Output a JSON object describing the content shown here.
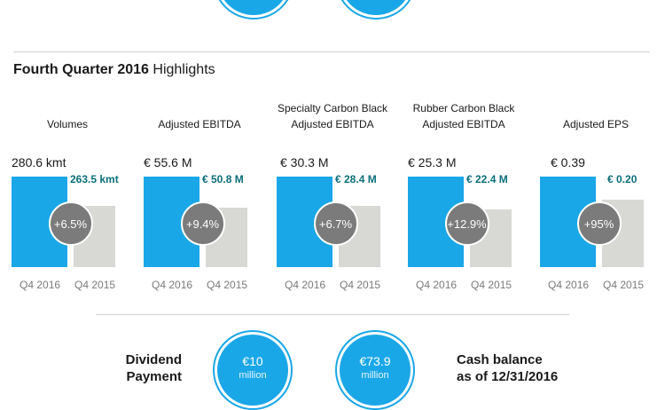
{
  "header": {
    "title_bold": "Fourth Quarter 2016",
    "title_regular": "Highlights"
  },
  "colors": {
    "current": "#1aa7e8",
    "previous": "#d8d8d5",
    "change_bubble": "#7b7b7b",
    "prev_value_text": "#0a6e7a"
  },
  "chart_data": [
    {
      "type": "bar",
      "title": "Volumes",
      "categories": [
        "Q4 2016",
        "Q4 2015"
      ],
      "values": [
        280.6,
        263.5
      ],
      "value_labels": [
        "280.6 kmt",
        "263.5 kmt"
      ],
      "change": "+6.5%"
    },
    {
      "type": "bar",
      "title": "Adjusted EBITDA",
      "categories": [
        "Q4 2016",
        "Q4 2015"
      ],
      "values": [
        55.6,
        50.8
      ],
      "value_labels": [
        "€ 55.6 M",
        "€ 50.8 M"
      ],
      "change": "+9.4%"
    },
    {
      "type": "bar",
      "title": "Specialty Carbon Black Adjusted EBITDA",
      "title_lines": [
        "Specialty Carbon Black",
        "Adjusted EBITDA"
      ],
      "categories": [
        "Q4 2016",
        "Q4 2015"
      ],
      "values": [
        30.3,
        28.4
      ],
      "value_labels": [
        "€ 30.3 M",
        "€ 28.4 M"
      ],
      "change": "+6.7%"
    },
    {
      "type": "bar",
      "title": "Rubber Carbon Black Adjusted EBITDA",
      "title_lines": [
        "Rubber Carbon Black",
        "Adjusted EBITDA"
      ],
      "categories": [
        "Q4 2016",
        "Q4 2015"
      ],
      "values": [
        25.3,
        22.4
      ],
      "value_labels": [
        "€ 25.3 M",
        "€ 22.4 M"
      ],
      "change": "+12.9%"
    },
    {
      "type": "bar",
      "title": "Adjusted EPS",
      "categories": [
        "Q4 2016",
        "Q4 2015"
      ],
      "values": [
        0.39,
        0.2
      ],
      "value_labels": [
        "€ 0.39",
        "€ 0.20"
      ],
      "change": "+95%"
    }
  ],
  "bottom": {
    "dividend_label": "Dividend",
    "dividend_sub": "Payment",
    "dividend_value": "€10",
    "dividend_unit": "million",
    "cash_label": "Cash balance",
    "cash_sub": "as of 12/31/2016",
    "cash_value": "€73.9",
    "cash_unit": "million"
  }
}
